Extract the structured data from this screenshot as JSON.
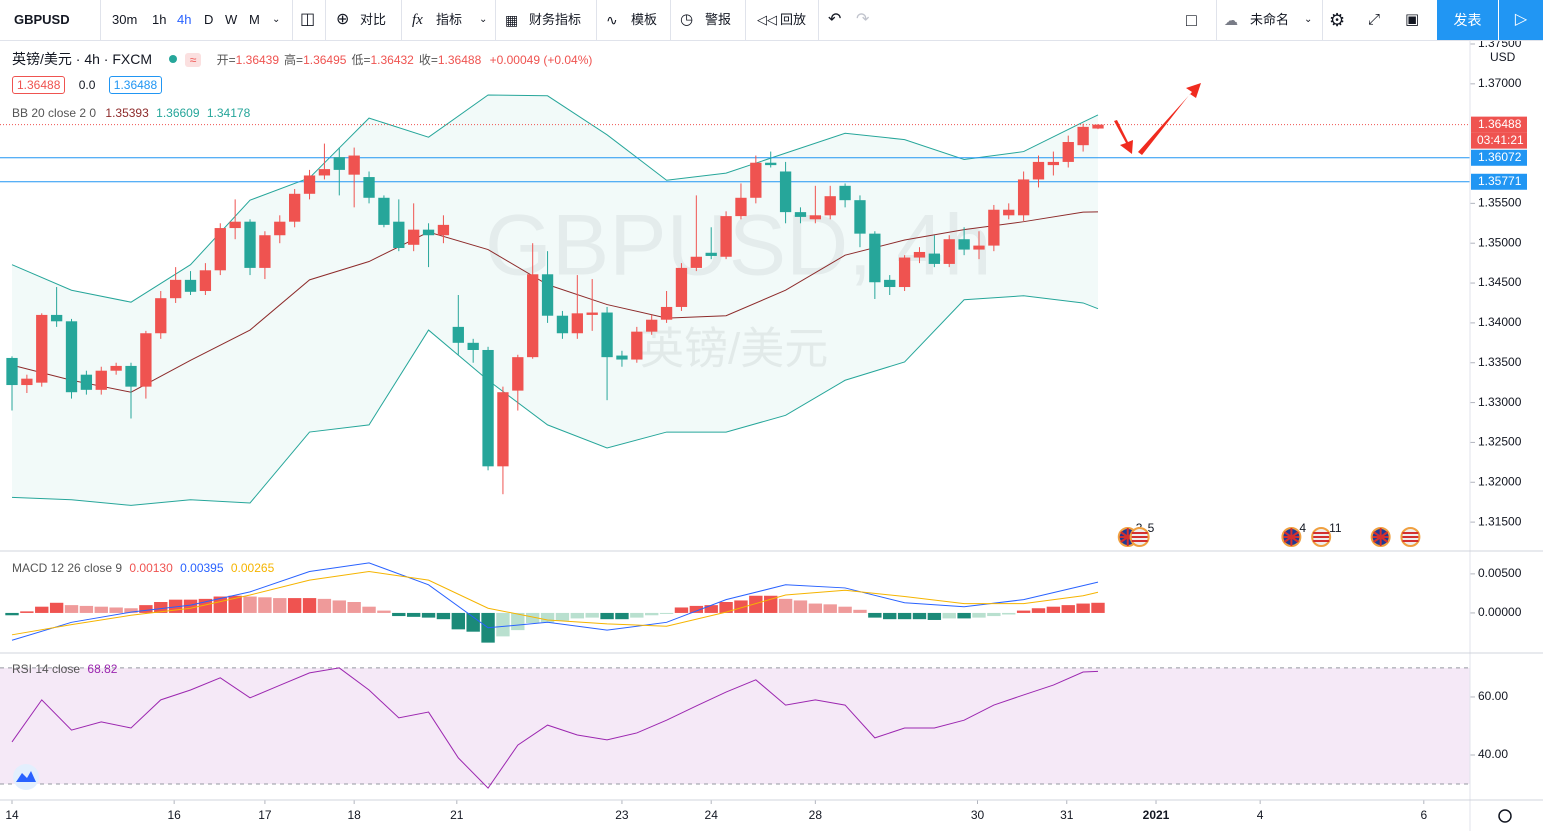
{
  "toolbar": {
    "symbol": "GBPUSD",
    "intervals": [
      "30m",
      "1h",
      "4h",
      "D",
      "W",
      "M"
    ],
    "active_interval": "4h",
    "buttons": [
      "对比",
      "指标",
      "财务指标",
      "模板",
      "警报",
      "回放"
    ],
    "layout_name": "未命名",
    "publish": "发表"
  },
  "legend": {
    "title": "英镑/美元 · 4h · FXCM",
    "ohlc": [
      {
        "label": "开=",
        "value": "1.36439"
      },
      {
        "label": "高=",
        "value": "1.36495"
      },
      {
        "label": "低=",
        "value": "1.36432"
      },
      {
        "label": "收=",
        "value": "1.36488"
      }
    ],
    "change": "+0.00049 (+0.04%)",
    "bid": "1.36488",
    "spread": "0.0",
    "ask": "1.36488"
  },
  "watermark": {
    "symbol": "GBPUSD, 4h",
    "name": "英镑/美元"
  },
  "chart_data": [
    {
      "type": "candlestick",
      "up_color": "#ef5350",
      "down_color": "#26a69a",
      "grid": false,
      "unit": "USD",
      "ylim": [
        1.3115,
        1.3755
      ],
      "yticks": [
        {
          "value": 1.315,
          "label": "1.31500"
        },
        {
          "value": 1.32,
          "label": "1.32000"
        },
        {
          "value": 1.325,
          "label": "1.32500"
        },
        {
          "value": 1.33,
          "label": "1.33000"
        },
        {
          "value": 1.335,
          "label": "1.33500"
        },
        {
          "value": 1.34,
          "label": "1.34000"
        },
        {
          "value": 1.345,
          "label": "1.34500"
        },
        {
          "value": 1.35,
          "label": "1.35000"
        },
        {
          "value": 1.355,
          "label": "1.35500"
        },
        {
          "value": 1.37,
          "label": "1.37000"
        },
        {
          "value": 1.375,
          "label": "1.37500"
        }
      ],
      "xticks": [
        {
          "value": 0,
          "label": "14"
        },
        {
          "value": 10.9,
          "label": "16"
        },
        {
          "value": 17,
          "label": "17"
        },
        {
          "value": 23,
          "label": "18"
        },
        {
          "value": 29.9,
          "label": "21"
        },
        {
          "value": 41,
          "label": "23"
        },
        {
          "value": 47,
          "label": "24"
        },
        {
          "value": 54,
          "label": "28"
        },
        {
          "value": 64.9,
          "label": "30"
        },
        {
          "value": 70.9,
          "label": "31"
        },
        {
          "value": 76.9,
          "label": "2021"
        },
        {
          "value": 83.9,
          "label": "4"
        },
        {
          "value": 94.9,
          "label": "6"
        }
      ],
      "candles": [
        [
          1.3356,
          1.3358,
          1.329,
          1.3322
        ],
        [
          1.3322,
          1.3335,
          1.3312,
          1.333
        ],
        [
          1.3325,
          1.3412,
          1.332,
          1.341
        ],
        [
          1.341,
          1.3445,
          1.3395,
          1.3402
        ],
        [
          1.3402,
          1.3405,
          1.3305,
          1.3313
        ],
        [
          1.3335,
          1.334,
          1.331,
          1.3316
        ],
        [
          1.3316,
          1.3345,
          1.331,
          1.334
        ],
        [
          1.334,
          1.335,
          1.3335,
          1.3346
        ],
        [
          1.3346,
          1.335,
          1.328,
          1.332
        ],
        [
          1.332,
          1.339,
          1.3305,
          1.3387
        ],
        [
          1.3387,
          1.344,
          1.338,
          1.3431
        ],
        [
          1.3431,
          1.347,
          1.3425,
          1.3454
        ],
        [
          1.3454,
          1.3465,
          1.3435,
          1.3439
        ],
        [
          1.344,
          1.3475,
          1.3435,
          1.3466
        ],
        [
          1.3466,
          1.3525,
          1.346,
          1.3519
        ],
        [
          1.3519,
          1.3555,
          1.3505,
          1.3527
        ],
        [
          1.3527,
          1.353,
          1.346,
          1.3469
        ],
        [
          1.3469,
          1.3515,
          1.3455,
          1.351
        ],
        [
          1.351,
          1.3535,
          1.35,
          1.3527
        ],
        [
          1.3527,
          1.3568,
          1.352,
          1.3562
        ],
        [
          1.3562,
          1.3592,
          1.3555,
          1.3585
        ],
        [
          1.3585,
          1.3625,
          1.358,
          1.3593
        ],
        [
          1.3608,
          1.362,
          1.356,
          1.3592
        ],
        [
          1.3586,
          1.362,
          1.3545,
          1.361
        ],
        [
          1.3583,
          1.359,
          1.355,
          1.3557
        ],
        [
          1.3557,
          1.356,
          1.352,
          1.3523
        ],
        [
          1.3527,
          1.3555,
          1.349,
          1.3494
        ],
        [
          1.3498,
          1.355,
          1.349,
          1.3517
        ],
        [
          1.3517,
          1.3525,
          1.347,
          1.351
        ],
        [
          1.351,
          1.3535,
          1.35,
          1.3523
        ],
        [
          1.3395,
          1.3435,
          1.336,
          1.3375
        ],
        [
          1.3375,
          1.338,
          1.335,
          1.3366
        ],
        [
          1.3366,
          1.337,
          1.3215,
          1.322
        ],
        [
          1.322,
          1.332,
          1.3185,
          1.3313
        ],
        [
          1.3315,
          1.336,
          1.329,
          1.3357
        ],
        [
          1.3357,
          1.35,
          1.3355,
          1.3461
        ],
        [
          1.3461,
          1.349,
          1.34,
          1.3409
        ],
        [
          1.3409,
          1.3415,
          1.338,
          1.3387
        ],
        [
          1.3387,
          1.346,
          1.338,
          1.3412
        ],
        [
          1.341,
          1.3455,
          1.339,
          1.3413
        ],
        [
          1.3413,
          1.342,
          1.3303,
          1.3357
        ],
        [
          1.3359,
          1.3365,
          1.3345,
          1.3354
        ],
        [
          1.3354,
          1.3395,
          1.335,
          1.3389
        ],
        [
          1.3389,
          1.341,
          1.3385,
          1.3404
        ],
        [
          1.3404,
          1.344,
          1.34,
          1.342
        ],
        [
          1.342,
          1.3475,
          1.3415,
          1.3469
        ],
        [
          1.3469,
          1.356,
          1.3465,
          1.3483
        ],
        [
          1.3488,
          1.352,
          1.348,
          1.3484
        ],
        [
          1.3483,
          1.354,
          1.348,
          1.3534
        ],
        [
          1.3534,
          1.3575,
          1.353,
          1.3557
        ],
        [
          1.3557,
          1.361,
          1.355,
          1.3601
        ],
        [
          1.3601,
          1.3615,
          1.3595,
          1.3598
        ],
        [
          1.359,
          1.3602,
          1.3525,
          1.3539
        ],
        [
          1.3539,
          1.3545,
          1.3525,
          1.3533
        ],
        [
          1.353,
          1.3572,
          1.3525,
          1.3535
        ],
        [
          1.3535,
          1.3572,
          1.353,
          1.3559
        ],
        [
          1.3572,
          1.3575,
          1.3545,
          1.3554
        ],
        [
          1.3554,
          1.356,
          1.3495,
          1.3512
        ],
        [
          1.3512,
          1.3515,
          1.343,
          1.3451
        ],
        [
          1.3454,
          1.346,
          1.3435,
          1.3445
        ],
        [
          1.3445,
          1.3485,
          1.344,
          1.3482
        ],
        [
          1.3482,
          1.3495,
          1.3475,
          1.3489
        ],
        [
          1.3487,
          1.351,
          1.347,
          1.3474
        ],
        [
          1.3474,
          1.351,
          1.347,
          1.3505
        ],
        [
          1.3505,
          1.352,
          1.3485,
          1.3492
        ],
        [
          1.3492,
          1.3515,
          1.348,
          1.3497
        ],
        [
          1.3497,
          1.3548,
          1.349,
          1.3542
        ],
        [
          1.3535,
          1.355,
          1.353,
          1.3542
        ],
        [
          1.3535,
          1.359,
          1.3528,
          1.358
        ],
        [
          1.358,
          1.361,
          1.357,
          1.3602
        ],
        [
          1.3598,
          1.3615,
          1.3585,
          1.3602
        ],
        [
          1.3602,
          1.3635,
          1.3595,
          1.3627
        ],
        [
          1.3623,
          1.365,
          1.3615,
          1.3646
        ],
        [
          1.36439,
          1.36495,
          1.36432,
          1.36488
        ]
      ],
      "bb": {
        "name": "BB 20 close 2 0",
        "color": "#26a69a",
        "mid_color": "#8d2b2b",
        "fill": "rgba(38,166,154,0.06)",
        "x": [
          0,
          4,
          8,
          12,
          16,
          20,
          24,
          28,
          32,
          36,
          40,
          44,
          48,
          52,
          56,
          60,
          64,
          68,
          72,
          73
        ],
        "upper": [
          1.3473,
          1.3441,
          1.3426,
          1.3473,
          1.3554,
          1.3582,
          1.3657,
          1.3633,
          1.3686,
          1.3685,
          1.3636,
          1.3579,
          1.3588,
          1.3613,
          1.3638,
          1.363,
          1.3605,
          1.3615,
          1.3652,
          1.36609
        ],
        "mid": [
          1.3347,
          1.3328,
          1.3313,
          1.3353,
          1.3391,
          1.3454,
          1.3477,
          1.3514,
          1.3492,
          1.3448,
          1.3423,
          1.3406,
          1.3409,
          1.3441,
          1.3485,
          1.3504,
          1.3517,
          1.3527,
          1.3539,
          1.35393
        ],
        "lower": [
          1.3181,
          1.3178,
          1.3171,
          1.3178,
          1.3174,
          1.3263,
          1.3272,
          1.3391,
          1.3328,
          1.3272,
          1.3243,
          1.3263,
          1.3263,
          1.3284,
          1.3328,
          1.3351,
          1.3429,
          1.3434,
          1.3425,
          1.34178
        ]
      },
      "tags": [
        {
          "value": 1.36488,
          "label": "1.36488",
          "color": "#ef5350",
          "line": "dotted"
        },
        {
          "value": 1.36072,
          "label": "1.36072",
          "color": "#2196f3",
          "line": "solid"
        },
        {
          "value": 1.35771,
          "label": "1.35771",
          "color": "#2196f3",
          "line": "solid"
        }
      ],
      "countdown": "03:41:21",
      "events": [
        {
          "x": 75,
          "label": "3"
        },
        {
          "x": 75.8,
          "label": "5"
        },
        {
          "x": 86,
          "label": "4"
        },
        {
          "x": 88,
          "label": "11"
        },
        {
          "x": 92
        },
        {
          "x": 94
        }
      ]
    },
    {
      "type": "macd",
      "name": "MACD 12 26 close 9",
      "legend_values": [
        "0.00130",
        "0.00395",
        "0.00265"
      ],
      "ylim": [
        -0.005,
        0.0078
      ],
      "yticks": [
        {
          "value": 0.005,
          "label": "0.00500"
        },
        {
          "value": 0,
          "label": "0.00000"
        }
      ],
      "hist_colors": {
        "grow_above": "#ef5350",
        "fall_above": "#ef9a9a",
        "grow_below": "#b9e0cf",
        "fall_below": "#1b8a78"
      },
      "histogram": [
        -0.0003,
        0.0002,
        0.0008,
        0.0013,
        0.001,
        0.0009,
        0.0008,
        0.0007,
        0.0006,
        0.001,
        0.0014,
        0.0017,
        0.0017,
        0.0018,
        0.0021,
        0.0022,
        0.0021,
        0.002,
        0.0019,
        0.0019,
        0.0019,
        0.0018,
        0.0016,
        0.0014,
        0.0008,
        0.0003,
        -0.0004,
        -0.0005,
        -0.0006,
        -0.0008,
        -0.0021,
        -0.0024,
        -0.0038,
        -0.003,
        -0.0022,
        -0.0013,
        -0.0012,
        -0.001,
        -0.0007,
        -0.0006,
        -0.0008,
        -0.0008,
        -0.0006,
        -0.0003,
        -0.0001,
        0.0007,
        0.0009,
        0.001,
        0.0014,
        0.0016,
        0.0022,
        0.0022,
        0.0018,
        0.0016,
        0.0012,
        0.0011,
        0.0008,
        0.0004,
        -0.0006,
        -0.0008,
        -0.0008,
        -0.0008,
        -0.0009,
        -0.0007,
        -0.0007,
        -0.0006,
        -0.0004,
        -0.0002,
        0.0003,
        0.0006,
        0.0008,
        0.001,
        0.0012,
        0.0013
      ],
      "x": [
        0,
        4,
        8,
        12,
        16,
        20,
        24,
        28,
        32,
        36,
        40,
        44,
        48,
        52,
        56,
        60,
        64,
        68,
        72,
        73
      ],
      "series": [
        {
          "name": "MACD",
          "color": "#2962ff",
          "values": [
            -0.0035,
            -0.0012,
            0.0001,
            0.001,
            0.0027,
            0.0053,
            0.0064,
            0.0036,
            -0.0019,
            -0.0012,
            -0.0022,
            -0.0012,
            0.0017,
            0.0036,
            0.0032,
            0.0013,
            0.0008,
            0.0017,
            0.0035,
            0.00395
          ]
        },
        {
          "name": "Signal",
          "color": "#f5b400",
          "values": [
            -0.0028,
            -0.0015,
            -0.0003,
            0.0006,
            0.0023,
            0.0042,
            0.0053,
            0.0042,
            0.0006,
            -0.0009,
            -0.0014,
            -0.0017,
            0.0001,
            0.0023,
            0.0029,
            0.0021,
            0.0012,
            0.0012,
            0.0022,
            0.00265
          ]
        }
      ]
    },
    {
      "type": "rsi",
      "name": "RSI 14 close",
      "color": "#9c27b0",
      "band_fill": "rgba(156,39,176,0.1)",
      "ylim": [
        24.5,
        74.8
      ],
      "yticks": [
        {
          "value": 60,
          "label": "60.00"
        },
        {
          "value": 40,
          "label": "40.00"
        }
      ],
      "bands": [
        70,
        30
      ],
      "x": [
        0,
        2,
        4,
        6,
        8,
        10,
        12,
        14,
        16,
        18,
        20,
        22,
        24,
        26,
        28,
        30,
        32,
        34,
        36,
        38,
        40,
        42,
        44,
        46,
        48,
        50,
        52,
        54,
        56,
        58,
        60,
        62,
        64,
        66,
        68,
        70,
        72,
        73
      ],
      "values": [
        44.5,
        59,
        48.6,
        51.4,
        49.3,
        59,
        62.4,
        66.6,
        59.7,
        64,
        68.3,
        70,
        62.4,
        52.8,
        54.8,
        39,
        28.6,
        43.4,
        50.3,
        46.9,
        45.2,
        47.6,
        52,
        56.9,
        61.7,
        65.9,
        57.2,
        59,
        57.2,
        45.9,
        49.3,
        49.3,
        52,
        57.2,
        60.7,
        64.1,
        68.6,
        68.82
      ]
    }
  ]
}
